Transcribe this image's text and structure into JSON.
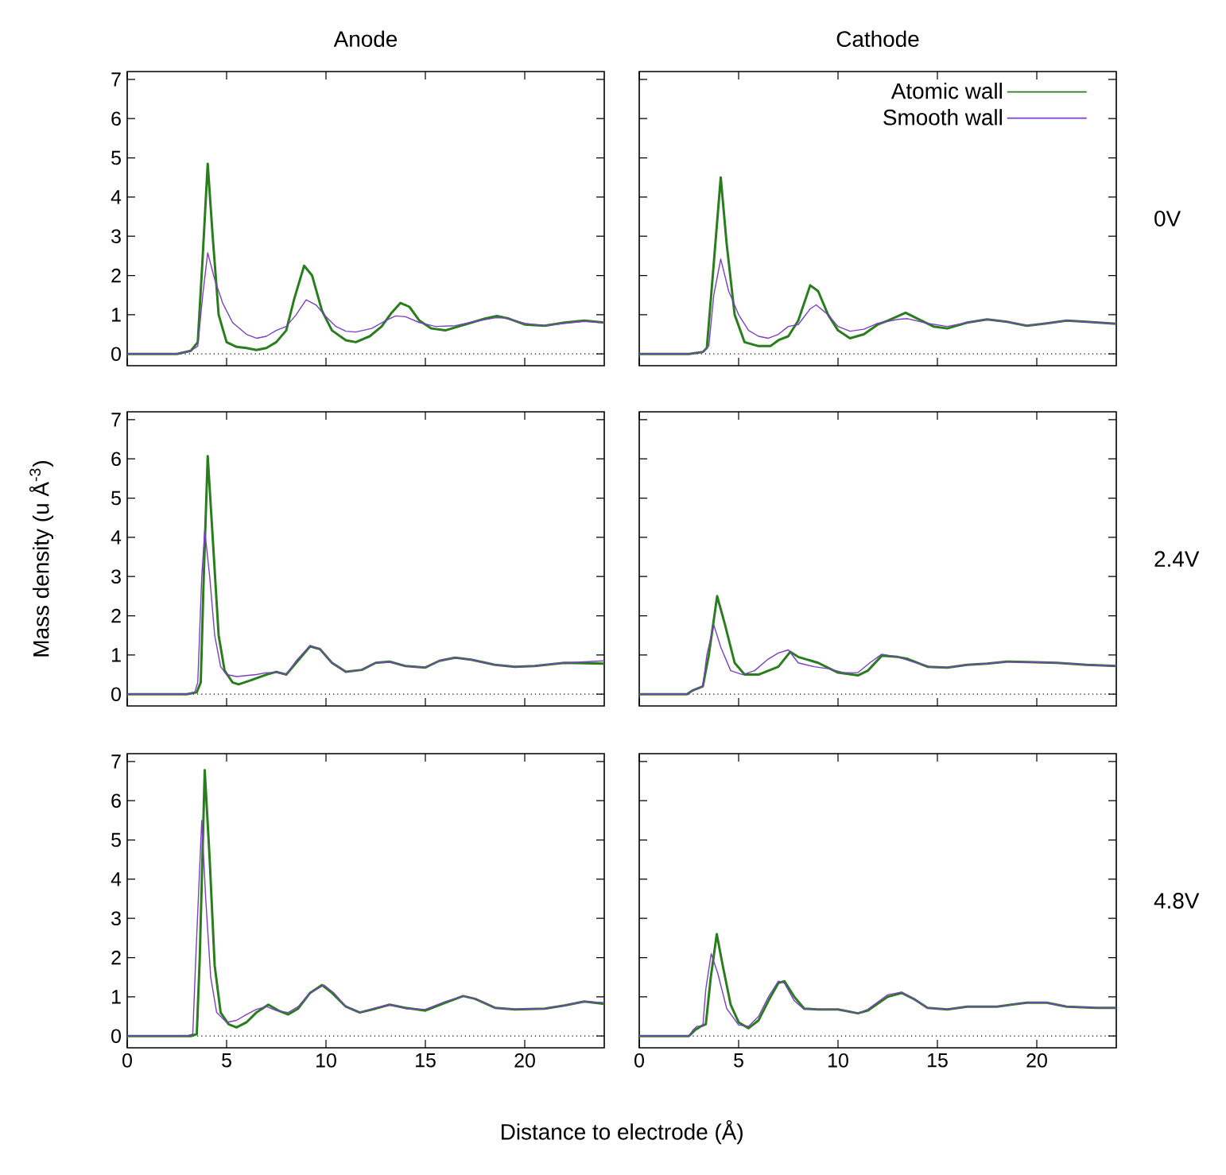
{
  "chart_data": [
    {
      "type": "line",
      "title": "Anode",
      "xlim": [
        0,
        24
      ],
      "xticks": [
        0,
        5,
        10,
        15,
        20
      ],
      "ylim": [
        -0.3,
        7.2
      ],
      "yticks": [
        0,
        1,
        2,
        3,
        4,
        5,
        6,
        7
      ],
      "tick_labels": "y",
      "ref_lines": [
        {
          "axis": "y",
          "value": 0,
          "line_style": "dotted"
        }
      ],
      "series": [
        {
          "color": "#2a7d1e",
          "x": [
            0,
            2.5,
            3.2,
            3.55,
            3.8,
            4.05,
            4.3,
            4.6,
            5.0,
            5.5,
            6.0,
            6.5,
            7.0,
            7.5,
            8.0,
            8.4,
            8.9,
            9.3,
            9.8,
            10.3,
            11,
            11.5,
            12.2,
            12.8,
            13.3,
            13.75,
            14.2,
            14.7,
            15.3,
            16,
            17,
            18,
            18.6,
            19.2,
            20,
            21,
            22,
            23,
            24
          ],
          "values": [
            0,
            0,
            0.08,
            0.3,
            2.5,
            4.85,
            3.0,
            1.0,
            0.3,
            0.18,
            0.15,
            0.1,
            0.15,
            0.3,
            0.6,
            1.4,
            2.25,
            2.0,
            1.1,
            0.6,
            0.35,
            0.3,
            0.45,
            0.7,
            1.05,
            1.3,
            1.2,
            0.85,
            0.65,
            0.6,
            0.75,
            0.9,
            0.97,
            0.9,
            0.75,
            0.72,
            0.8,
            0.85,
            0.8
          ]
        },
        {
          "color": "#7b3fc0",
          "x": [
            0,
            2.5,
            3.2,
            3.55,
            3.8,
            4.05,
            4.4,
            4.8,
            5.3,
            6,
            6.5,
            7,
            7.5,
            8,
            8.5,
            9.0,
            9.5,
            10,
            10.5,
            11,
            11.5,
            12.3,
            13,
            13.5,
            14,
            14.7,
            15.5,
            16.5,
            17.5,
            18.5,
            19,
            20,
            21,
            22,
            23,
            24
          ],
          "values": [
            0,
            0,
            0.08,
            0.2,
            1.5,
            2.58,
            1.9,
            1.3,
            0.8,
            0.5,
            0.4,
            0.45,
            0.6,
            0.7,
            1.0,
            1.38,
            1.25,
            0.95,
            0.7,
            0.58,
            0.56,
            0.65,
            0.85,
            0.97,
            0.95,
            0.8,
            0.7,
            0.72,
            0.83,
            0.92,
            0.92,
            0.78,
            0.72,
            0.78,
            0.83,
            0.8
          ]
        }
      ]
    },
    {
      "type": "line",
      "title": "Cathode",
      "y2label": "0V",
      "xlim": [
        0,
        24
      ],
      "xticks": [
        0,
        5,
        10,
        15,
        20
      ],
      "ylim": [
        -0.3,
        7.2
      ],
      "yticks": [
        0,
        1,
        2,
        3,
        4,
        5,
        6,
        7
      ],
      "tick_labels": false,
      "legend": "top right",
      "ref_lines": [
        {
          "axis": "y",
          "value": 0,
          "line_style": "dotted"
        }
      ],
      "series": [
        {
          "name": "Atomic wall",
          "color": "#2a7d1e",
          "x": [
            0,
            2.5,
            3.2,
            3.4,
            3.7,
            4.1,
            4.4,
            4.8,
            5.3,
            6,
            6.6,
            7.0,
            7.5,
            8.0,
            8.6,
            9.0,
            9.5,
            10,
            10.6,
            11.3,
            12,
            12.5,
            13.4,
            14,
            14.8,
            15.5,
            16.5,
            17.5,
            18.5,
            19.5,
            20.5,
            21.5,
            22.5,
            24
          ],
          "values": [
            0,
            0,
            0.05,
            0.15,
            2.0,
            4.5,
            2.8,
            1.0,
            0.3,
            0.2,
            0.2,
            0.35,
            0.45,
            0.85,
            1.75,
            1.6,
            1.0,
            0.6,
            0.4,
            0.5,
            0.75,
            0.85,
            1.05,
            0.9,
            0.7,
            0.65,
            0.8,
            0.88,
            0.82,
            0.72,
            0.78,
            0.85,
            0.82,
            0.77
          ]
        },
        {
          "name": "Smooth wall",
          "color": "#7b3fc0",
          "x": [
            0,
            2.5,
            3.2,
            3.5,
            3.75,
            4.1,
            4.5,
            5,
            5.5,
            6,
            6.5,
            7,
            7.5,
            8,
            8.6,
            8.9,
            9.5,
            10,
            10.6,
            11.3,
            12,
            13,
            13.5,
            14.5,
            15.5,
            16.5,
            17.5,
            18.5,
            19.5,
            20.5,
            21.5,
            22.5,
            24
          ],
          "values": [
            0,
            0,
            0.05,
            0.2,
            1.5,
            2.42,
            1.6,
            1.0,
            0.6,
            0.45,
            0.4,
            0.5,
            0.7,
            0.75,
            1.15,
            1.25,
            1.0,
            0.7,
            0.58,
            0.63,
            0.78,
            0.88,
            0.9,
            0.78,
            0.7,
            0.8,
            0.88,
            0.82,
            0.72,
            0.78,
            0.85,
            0.82,
            0.77
          ]
        }
      ]
    },
    {
      "type": "line",
      "ylabel": "Mass density (u Å$^{-3}$)",
      "xlim": [
        0,
        24
      ],
      "xticks": [
        0,
        5,
        10,
        15,
        20
      ],
      "ylim": [
        -0.3,
        7.2
      ],
      "yticks": [
        0,
        1,
        2,
        3,
        4,
        5,
        6,
        7
      ],
      "tick_labels": "y",
      "ref_lines": [
        {
          "axis": "y",
          "value": 0,
          "line_style": "dotted"
        }
      ],
      "series": [
        {
          "color": "#2a7d1e",
          "x": [
            0,
            3,
            3.5,
            3.7,
            3.85,
            4.05,
            4.3,
            4.6,
            4.9,
            5.3,
            5.6,
            6.2,
            7.0,
            7.5,
            8.0,
            8.5,
            9.2,
            9.7,
            10.3,
            11,
            11.8,
            12.5,
            13.2,
            14,
            15,
            15.7,
            16.5,
            17.3,
            18.5,
            19.5,
            20.5,
            22,
            24
          ],
          "values": [
            0,
            0,
            0.05,
            0.3,
            3.0,
            6.07,
            4.0,
            1.5,
            0.6,
            0.3,
            0.25,
            0.35,
            0.5,
            0.57,
            0.5,
            0.8,
            1.22,
            1.15,
            0.8,
            0.57,
            0.62,
            0.8,
            0.83,
            0.72,
            0.68,
            0.85,
            0.93,
            0.88,
            0.75,
            0.7,
            0.72,
            0.8,
            0.78
          ]
        },
        {
          "color": "#7b3fc0",
          "x": [
            0,
            3,
            3.4,
            3.55,
            3.75,
            3.9,
            4.15,
            4.4,
            4.7,
            5,
            5.5,
            6.5,
            7.0,
            7.5,
            8,
            8.5,
            9.2,
            9.7,
            10.3,
            11,
            11.8,
            12.5,
            13.2,
            14,
            15,
            15.7,
            16.5,
            17.3,
            18.5,
            19.5,
            20.5,
            22,
            24
          ],
          "values": [
            0,
            0,
            0.05,
            0.3,
            3.0,
            4.18,
            3.0,
            1.5,
            0.7,
            0.5,
            0.45,
            0.5,
            0.55,
            0.55,
            0.5,
            0.85,
            1.24,
            1.15,
            0.8,
            0.57,
            0.62,
            0.8,
            0.83,
            0.72,
            0.68,
            0.85,
            0.93,
            0.88,
            0.75,
            0.7,
            0.72,
            0.8,
            0.85
          ]
        }
      ]
    },
    {
      "type": "line",
      "y2label": "2.4V",
      "xlim": [
        0,
        24
      ],
      "xticks": [
        0,
        5,
        10,
        15,
        20
      ],
      "ylim": [
        -0.3,
        7.2
      ],
      "yticks": [
        0,
        1,
        2,
        3,
        4,
        5,
        6,
        7
      ],
      "tick_labels": false,
      "ref_lines": [
        {
          "axis": "y",
          "value": 0,
          "line_style": "dotted"
        }
      ],
      "series": [
        {
          "color": "#2a7d1e",
          "x": [
            0,
            2.4,
            2.7,
            3.2,
            3.5,
            3.92,
            4.3,
            4.8,
            5.3,
            6,
            7,
            7.6,
            8,
            9,
            10,
            11,
            11.5,
            12.2,
            13,
            13.5,
            14.5,
            15.5,
            16.5,
            17.5,
            18.5,
            19.5,
            21,
            22.5,
            24
          ],
          "values": [
            0,
            0,
            0.1,
            0.2,
            1.0,
            2.5,
            1.8,
            0.8,
            0.5,
            0.5,
            0.7,
            1.08,
            0.95,
            0.8,
            0.55,
            0.48,
            0.6,
            0.98,
            0.95,
            0.9,
            0.7,
            0.68,
            0.75,
            0.78,
            0.83,
            0.82,
            0.8,
            0.75,
            0.72
          ]
        },
        {
          "color": "#7b3fc0",
          "x": [
            0,
            2.4,
            2.7,
            3.2,
            3.4,
            3.75,
            4.1,
            4.6,
            5.2,
            5.8,
            6.5,
            7,
            7.5,
            8,
            8.8,
            9.5,
            10.3,
            11,
            11.6,
            12.2,
            13,
            13.8,
            14.8,
            15.5,
            16.5,
            17.5,
            18.5,
            19.5,
            21,
            22.5,
            24
          ],
          "values": [
            0,
            0,
            0.1,
            0.2,
            1.0,
            1.77,
            1.2,
            0.6,
            0.5,
            0.6,
            0.9,
            1.05,
            1.13,
            0.8,
            0.7,
            0.65,
            0.55,
            0.55,
            0.8,
            1.02,
            0.95,
            0.82,
            0.68,
            0.68,
            0.75,
            0.78,
            0.83,
            0.82,
            0.8,
            0.75,
            0.72
          ]
        }
      ]
    },
    {
      "type": "line",
      "xlabel": "Distance to electrode (Å)",
      "xlim": [
        0,
        24
      ],
      "xticks": [
        0,
        5,
        10,
        15,
        20
      ],
      "ylim": [
        -0.3,
        7.2
      ],
      "yticks": [
        0,
        1,
        2,
        3,
        4,
        5,
        6,
        7
      ],
      "ref_lines": [
        {
          "axis": "y",
          "value": 0,
          "line_style": "dotted"
        }
      ],
      "series": [
        {
          "color": "#2a7d1e",
          "x": [
            0,
            3.2,
            3.5,
            3.65,
            3.9,
            4.15,
            4.4,
            4.7,
            5.1,
            5.5,
            6,
            6.5,
            7.1,
            7.6,
            8.1,
            8.6,
            9.2,
            9.8,
            10.3,
            11,
            11.7,
            12.5,
            13.2,
            14,
            15,
            16,
            16.9,
            17.5,
            18.5,
            19.5,
            21,
            22,
            23,
            24
          ],
          "values": [
            0,
            0,
            0.05,
            2.0,
            6.78,
            4.5,
            1.8,
            0.6,
            0.3,
            0.22,
            0.35,
            0.6,
            0.8,
            0.65,
            0.55,
            0.7,
            1.1,
            1.3,
            1.1,
            0.75,
            0.6,
            0.7,
            0.8,
            0.72,
            0.65,
            0.85,
            1.02,
            0.95,
            0.72,
            0.68,
            0.7,
            0.78,
            0.88,
            0.82
          ]
        },
        {
          "color": "#7b3fc0",
          "x": [
            0,
            3,
            3.3,
            3.45,
            3.75,
            3.95,
            4.2,
            4.5,
            5,
            5.5,
            6,
            6.5,
            7.0,
            7.5,
            8.1,
            8.6,
            9.2,
            9.9,
            10.4,
            11,
            11.7,
            12.5,
            13.2,
            14,
            15,
            16,
            16.9,
            17.5,
            18.5,
            19.5,
            21,
            22,
            23,
            24
          ],
          "values": [
            0,
            0,
            0.05,
            2.0,
            5.5,
            3.5,
            1.5,
            0.6,
            0.35,
            0.4,
            0.55,
            0.68,
            0.75,
            0.65,
            0.6,
            0.75,
            1.1,
            1.3,
            1.1,
            0.75,
            0.6,
            0.72,
            0.8,
            0.7,
            0.68,
            0.88,
            1.02,
            0.95,
            0.72,
            0.68,
            0.7,
            0.78,
            0.88,
            0.85
          ]
        }
      ]
    },
    {
      "type": "line",
      "y2label": "4.8V",
      "xlim": [
        0,
        24
      ],
      "xticks": [
        0,
        5,
        10,
        15,
        20
      ],
      "ylim": [
        -0.3,
        7.2
      ],
      "yticks": [
        0,
        1,
        2,
        3,
        4,
        5,
        6,
        7
      ],
      "tick_labels": "x",
      "ref_lines": [
        {
          "axis": "y",
          "value": 0,
          "line_style": "dotted"
        }
      ],
      "series": [
        {
          "color": "#2a7d1e",
          "x": [
            0,
            2.5,
            2.8,
            3.1,
            3.35,
            3.6,
            3.9,
            4.2,
            4.6,
            5.0,
            5.5,
            6,
            6.5,
            7,
            7.3,
            7.8,
            8.3,
            9,
            10,
            11,
            11.5,
            12.5,
            13.2,
            13.8,
            14.5,
            15.5,
            16.5,
            18,
            19.5,
            20.5,
            21.5,
            23,
            24
          ],
          "values": [
            0,
            0,
            0.15,
            0.25,
            0.3,
            1.5,
            2.6,
            1.8,
            0.8,
            0.35,
            0.2,
            0.4,
            0.9,
            1.35,
            1.4,
            1.0,
            0.7,
            0.68,
            0.68,
            0.58,
            0.65,
            1.0,
            1.1,
            0.95,
            0.72,
            0.68,
            0.75,
            0.75,
            0.85,
            0.85,
            0.75,
            0.72,
            0.72
          ]
        },
        {
          "color": "#7b3fc0",
          "x": [
            0,
            2.5,
            2.7,
            2.9,
            3.2,
            3.35,
            3.62,
            3.95,
            4.4,
            5,
            5.5,
            6,
            6.5,
            7,
            7.3,
            7.8,
            8.3,
            9,
            10,
            11,
            11.5,
            12.5,
            13.2,
            13.8,
            14.5,
            15.5,
            16.5,
            18,
            19.5,
            20.5,
            21.5,
            23,
            24
          ],
          "values": [
            0,
            0,
            0.15,
            0.25,
            0.25,
            1.2,
            2.1,
            1.6,
            0.7,
            0.28,
            0.25,
            0.5,
            1.0,
            1.4,
            1.35,
            0.9,
            0.68,
            0.68,
            0.68,
            0.58,
            0.68,
            1.05,
            1.12,
            0.95,
            0.72,
            0.68,
            0.75,
            0.75,
            0.85,
            0.85,
            0.75,
            0.72,
            0.72
          ]
        }
      ]
    }
  ]
}
